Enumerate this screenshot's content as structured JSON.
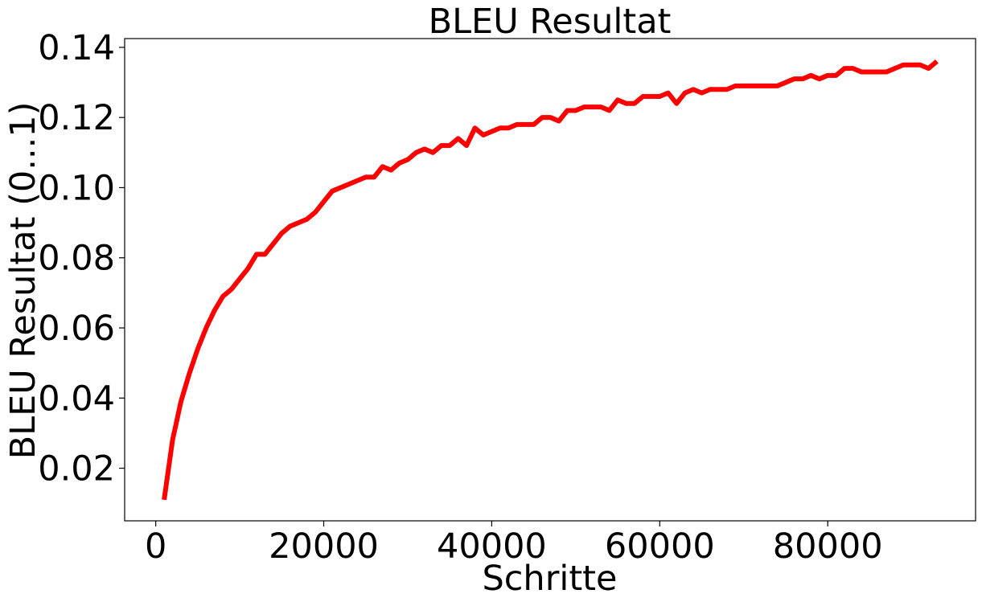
{
  "chart_data": {
    "type": "line",
    "title": "BLEU Resultat",
    "xlabel": "Schritte",
    "ylabel": "BLEU Resultat (0...1)",
    "xlim": [
      -3700,
      97600
    ],
    "ylim": [
      0.005,
      0.1425
    ],
    "xticks": [
      0,
      20000,
      40000,
      60000,
      80000
    ],
    "xtick_labels": [
      "0",
      "20000",
      "40000",
      "60000",
      "80000"
    ],
    "yticks": [
      0.02,
      0.04,
      0.06,
      0.08,
      0.1,
      0.12,
      0.14
    ],
    "ytick_labels": [
      "0.02",
      "0.04",
      "0.06",
      "0.08",
      "0.10",
      "0.12",
      "0.14"
    ],
    "grid": false,
    "series": [
      {
        "color": "#ff0000",
        "x": [
          1000,
          2000,
          3000,
          4000,
          5000,
          6000,
          7000,
          8000,
          9000,
          10000,
          11000,
          12000,
          13000,
          14000,
          15000,
          16000,
          17000,
          18000,
          19000,
          20000,
          21000,
          22000,
          23000,
          24000,
          25000,
          26000,
          27000,
          28000,
          29000,
          30000,
          31000,
          32000,
          33000,
          34000,
          35000,
          36000,
          37000,
          38000,
          39000,
          40000,
          41000,
          42000,
          43000,
          44000,
          45000,
          46000,
          47000,
          48000,
          49000,
          50000,
          51000,
          52000,
          53000,
          54000,
          55000,
          56000,
          57000,
          58000,
          59000,
          60000,
          61000,
          62000,
          63000,
          64000,
          65000,
          66000,
          67000,
          68000,
          69000,
          70000,
          71000,
          72000,
          73000,
          74000,
          75000,
          76000,
          77000,
          78000,
          79000,
          80000,
          81000,
          82000,
          83000,
          84000,
          85000,
          86000,
          87000,
          88000,
          89000,
          90000,
          91000,
          92000,
          93000
        ],
        "y": [
          0.011,
          0.028,
          0.039,
          0.047,
          0.054,
          0.06,
          0.065,
          0.069,
          0.071,
          0.074,
          0.077,
          0.081,
          0.081,
          0.084,
          0.087,
          0.089,
          0.09,
          0.091,
          0.093,
          0.096,
          0.099,
          0.1,
          0.101,
          0.102,
          0.103,
          0.103,
          0.106,
          0.105,
          0.107,
          0.108,
          0.11,
          0.111,
          0.11,
          0.112,
          0.112,
          0.114,
          0.112,
          0.117,
          0.115,
          0.116,
          0.117,
          0.117,
          0.118,
          0.118,
          0.118,
          0.12,
          0.12,
          0.119,
          0.122,
          0.122,
          0.123,
          0.123,
          0.123,
          0.122,
          0.125,
          0.124,
          0.124,
          0.126,
          0.126,
          0.126,
          0.127,
          0.124,
          0.127,
          0.128,
          0.127,
          0.128,
          0.128,
          0.128,
          0.129,
          0.129,
          0.129,
          0.129,
          0.129,
          0.129,
          0.13,
          0.131,
          0.131,
          0.132,
          0.131,
          0.132,
          0.132,
          0.134,
          0.134,
          0.133,
          0.133,
          0.133,
          0.133,
          0.134,
          0.135,
          0.135,
          0.135,
          0.134,
          0.136
        ]
      }
    ]
  }
}
